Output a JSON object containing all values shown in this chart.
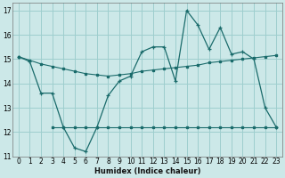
{
  "xlabel": "Humidex (Indice chaleur)",
  "ylabel": "",
  "xlim": [
    -0.5,
    23.5
  ],
  "ylim": [
    11,
    17.3
  ],
  "yticks": [
    11,
    12,
    13,
    14,
    15,
    16,
    17
  ],
  "xticks": [
    0,
    1,
    2,
    3,
    4,
    5,
    6,
    7,
    8,
    9,
    10,
    11,
    12,
    13,
    14,
    15,
    16,
    17,
    18,
    19,
    20,
    21,
    22,
    23
  ],
  "bg_color": "#cce8e8",
  "grid_color": "#9ecece",
  "line_color": "#1a6b6b",
  "main_line": [
    15.1,
    14.9,
    13.6,
    13.6,
    12.2,
    11.35,
    11.2,
    12.2,
    13.5,
    14.1,
    14.3,
    15.3,
    15.5,
    15.5,
    14.1,
    17.0,
    16.4,
    15.4,
    16.3,
    15.2,
    15.3,
    15.0,
    13.0,
    12.2
  ],
  "line_upper": [
    15.1,
    14.95,
    14.8,
    14.7,
    14.6,
    14.5,
    14.4,
    14.35,
    14.3,
    14.35,
    14.4,
    14.5,
    14.55,
    14.6,
    14.65,
    14.7,
    14.75,
    14.85,
    14.9,
    14.95,
    15.0,
    15.05,
    15.1,
    15.15
  ],
  "line_flat": [
    null,
    null,
    null,
    12.2,
    12.2,
    12.2,
    12.2,
    12.2,
    12.2,
    12.2,
    12.2,
    12.2,
    12.2,
    12.2,
    12.2,
    12.2,
    12.2,
    12.2,
    12.2,
    12.2,
    12.2,
    12.2,
    12.2,
    12.2
  ]
}
